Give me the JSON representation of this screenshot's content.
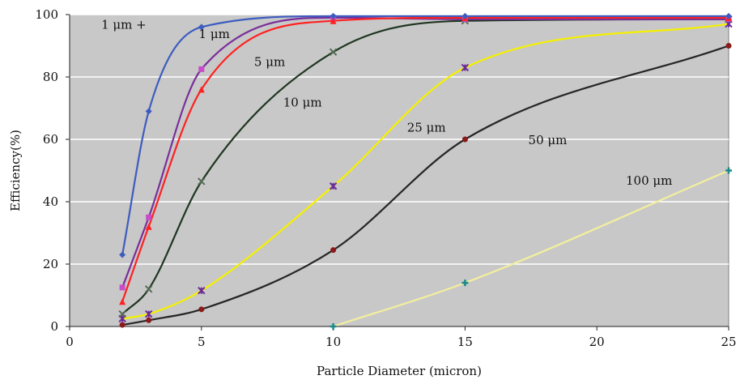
{
  "chart_data": {
    "type": "line",
    "xlabel": "Particle Diameter (micron)",
    "ylabel": "Efficiency(%)",
    "xlim": [
      0,
      25
    ],
    "ylim": [
      0,
      100
    ],
    "xticks": [
      0,
      5,
      10,
      15,
      20,
      25
    ],
    "yticks": [
      0,
      20,
      40,
      60,
      80,
      100
    ],
    "grid": "horizontal",
    "background": "#c8c8c8",
    "series": [
      {
        "name": "1 μm +",
        "color": "#3d5cbf",
        "marker": "diamond",
        "x": [
          2,
          3,
          5,
          10,
          15,
          25
        ],
        "y": [
          23,
          69,
          96,
          99.5,
          99.5,
          99.5
        ],
        "label_pos": [
          1.2,
          95.5
        ]
      },
      {
        "name": "1 μm",
        "color": "#ff2020",
        "marker": "triangle",
        "x": [
          2,
          3,
          5,
          10,
          15,
          25
        ],
        "y": [
          8,
          32,
          76,
          98,
          99,
          99
        ],
        "label_pos": [
          4.9,
          92.5
        ]
      },
      {
        "name": "5 μm",
        "color": "#7a2f9a",
        "marker": "square",
        "x": [
          2,
          3,
          5,
          10,
          15,
          25
        ],
        "y": [
          12.5,
          35,
          82.5,
          99,
          98.5,
          98.5
        ],
        "label_pos": [
          7.0,
          83.5
        ]
      },
      {
        "name": "10 μm",
        "color": "#1f3620",
        "marker": "x",
        "x": [
          2,
          3,
          5,
          10,
          15,
          25
        ],
        "y": [
          4,
          12,
          46.5,
          88,
          98,
          98.5
        ],
        "label_pos": [
          8.1,
          70.5
        ]
      },
      {
        "name": "25 μm",
        "color": "#f5f000",
        "marker": "asterisk",
        "x": [
          2,
          3,
          5,
          10,
          15,
          25
        ],
        "y": [
          2.5,
          4,
          11.5,
          45,
          83,
          97
        ],
        "label_pos": [
          12.8,
          62.5
        ]
      },
      {
        "name": "50 μm",
        "color": "#262626",
        "marker": "circle",
        "x": [
          2,
          3,
          5,
          10,
          15,
          25
        ],
        "y": [
          0.5,
          2,
          5.5,
          24.5,
          60,
          90
        ],
        "label_pos": [
          17.4,
          58.5
        ]
      },
      {
        "name": "100 μm",
        "color": "#f3ef9e",
        "marker": "plus",
        "x": [
          10,
          15,
          25
        ],
        "y": [
          0,
          14,
          50
        ],
        "label_pos": [
          21.1,
          45.5
        ]
      }
    ]
  }
}
